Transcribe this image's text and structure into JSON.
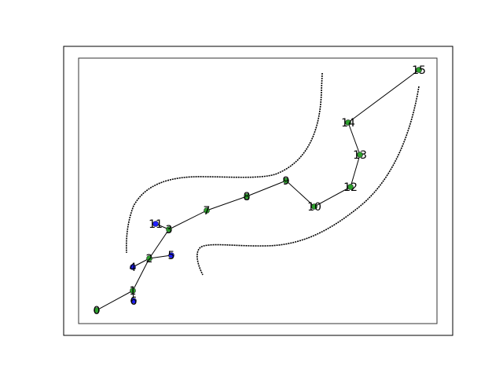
{
  "graph": {
    "colors": {
      "frame": "#000000",
      "edge": "#000000",
      "curve": "#000000",
      "node_green": "#2ca02c",
      "node_blue": "#1f1fff",
      "label": "#000000"
    },
    "nodes": [
      {
        "id": "0",
        "label": "0",
        "color": "green"
      },
      {
        "id": "1",
        "label": "1",
        "color": "green"
      },
      {
        "id": "2",
        "label": "2",
        "color": "green"
      },
      {
        "id": "3",
        "label": "3",
        "color": "green"
      },
      {
        "id": "4",
        "label": "4",
        "color": "blue"
      },
      {
        "id": "5",
        "label": "5",
        "color": "blue"
      },
      {
        "id": "6",
        "label": "6",
        "color": "blue"
      },
      {
        "id": "7",
        "label": "7",
        "color": "green"
      },
      {
        "id": "8",
        "label": "8",
        "color": "green"
      },
      {
        "id": "9",
        "label": "9",
        "color": "green"
      },
      {
        "id": "10",
        "label": "10",
        "color": "green"
      },
      {
        "id": "11",
        "label": "11",
        "color": "blue"
      },
      {
        "id": "12",
        "label": "12",
        "color": "green"
      },
      {
        "id": "13",
        "label": "13",
        "color": "green"
      },
      {
        "id": "14",
        "label": "14",
        "color": "green"
      },
      {
        "id": "15",
        "label": "15",
        "color": "green"
      }
    ],
    "edges": [
      [
        "0",
        "1"
      ],
      [
        "1",
        "6"
      ],
      [
        "1",
        "2"
      ],
      [
        "2",
        "4"
      ],
      [
        "2",
        "5"
      ],
      [
        "2",
        "3"
      ],
      [
        "3",
        "11"
      ],
      [
        "3",
        "7"
      ],
      [
        "7",
        "8"
      ],
      [
        "8",
        "9"
      ],
      [
        "9",
        "10"
      ],
      [
        "10",
        "12"
      ],
      [
        "12",
        "13"
      ],
      [
        "13",
        "14"
      ],
      [
        "14",
        "15"
      ]
    ],
    "curves": [
      "upper-left-boundary",
      "lower-right-boundary"
    ]
  }
}
